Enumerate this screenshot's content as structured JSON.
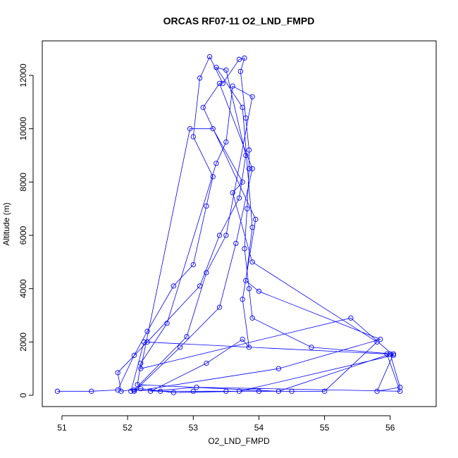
{
  "chart_data": {
    "type": "line",
    "title": "ORCAS RF07-11 O2_LND_FMPD",
    "x_label": "O2_LND_FMPD",
    "y_label": "Altitude (m)",
    "color": "#0000ff",
    "markers": true,
    "x": [
      50.93,
      51.45,
      51.85,
      52.1,
      52.3,
      52.7,
      53.0,
      53.2,
      53.3,
      53.0,
      53.1,
      53.25,
      53.45,
      53.7,
      53.78,
      53.72,
      53.8,
      53.85,
      53.85,
      53.82,
      53.78,
      53.85,
      53.9,
      54.8,
      56.05,
      55.8,
      56.15,
      56.0,
      54.3,
      52.15,
      52.2,
      52.6,
      53.35,
      53.5,
      53.6,
      53.9,
      53.5,
      53.2,
      52.9,
      52.1,
      52.5,
      53.0,
      53.5,
      54.0,
      54.5,
      55.0,
      55.8,
      53.9,
      53.6,
      53.75,
      53.3,
      52.95,
      52.2,
      55.4,
      56.05,
      53.7,
      52.7,
      52.2,
      51.9,
      51.85,
      52.3,
      53.1,
      53.4,
      53.7,
      53.8,
      53.5,
      53.35,
      53.75,
      53.9,
      53.8,
      54.0,
      55.85,
      54.3,
      52.1,
      52.8,
      53.4,
      53.65,
      53.9,
      53.4,
      53.15,
      53.95,
      53.75,
      53.85,
      53.75,
      53.2,
      52.35,
      53.05,
      56.15,
      55.95,
      52.25,
      52.05
    ],
    "values": [
      150,
      150,
      200,
      1500,
      2400,
      4100,
      4900,
      7100,
      8200,
      9700,
      11900,
      12700,
      11700,
      12600,
      12650,
      12150,
      10400,
      9200,
      8500,
      7000,
      5500,
      4000,
      2900,
      1800,
      1550,
      150,
      300,
      1550,
      150,
      400,
      1200,
      2700,
      8700,
      9500,
      11600,
      11200,
      6000,
      4600,
      2200,
      200,
      150,
      150,
      150,
      150,
      150,
      150,
      2000,
      5000,
      7600,
      8000,
      10000,
      10000,
      1000,
      2900,
      1500,
      150,
      100,
      250,
      150,
      850,
      2000,
      4100,
      6000,
      7400,
      9000,
      12200,
      12300,
      10800,
      6300,
      4300,
      3900,
      2100,
      1000,
      150,
      1800,
      3300,
      5700,
      8500,
      11700,
      10800,
      6600,
      3600,
      1800,
      2100,
      1200,
      150,
      300,
      150,
      1550,
      2000,
      150
    ],
    "xlim": [
      50.7,
      56.7
    ],
    "ylim": [
      -423,
      13296
    ],
    "xticks": [
      51,
      52,
      53,
      54,
      55,
      56
    ],
    "yticks": [
      0,
      2000,
      4000,
      6000,
      8000,
      10000,
      12000
    ]
  }
}
